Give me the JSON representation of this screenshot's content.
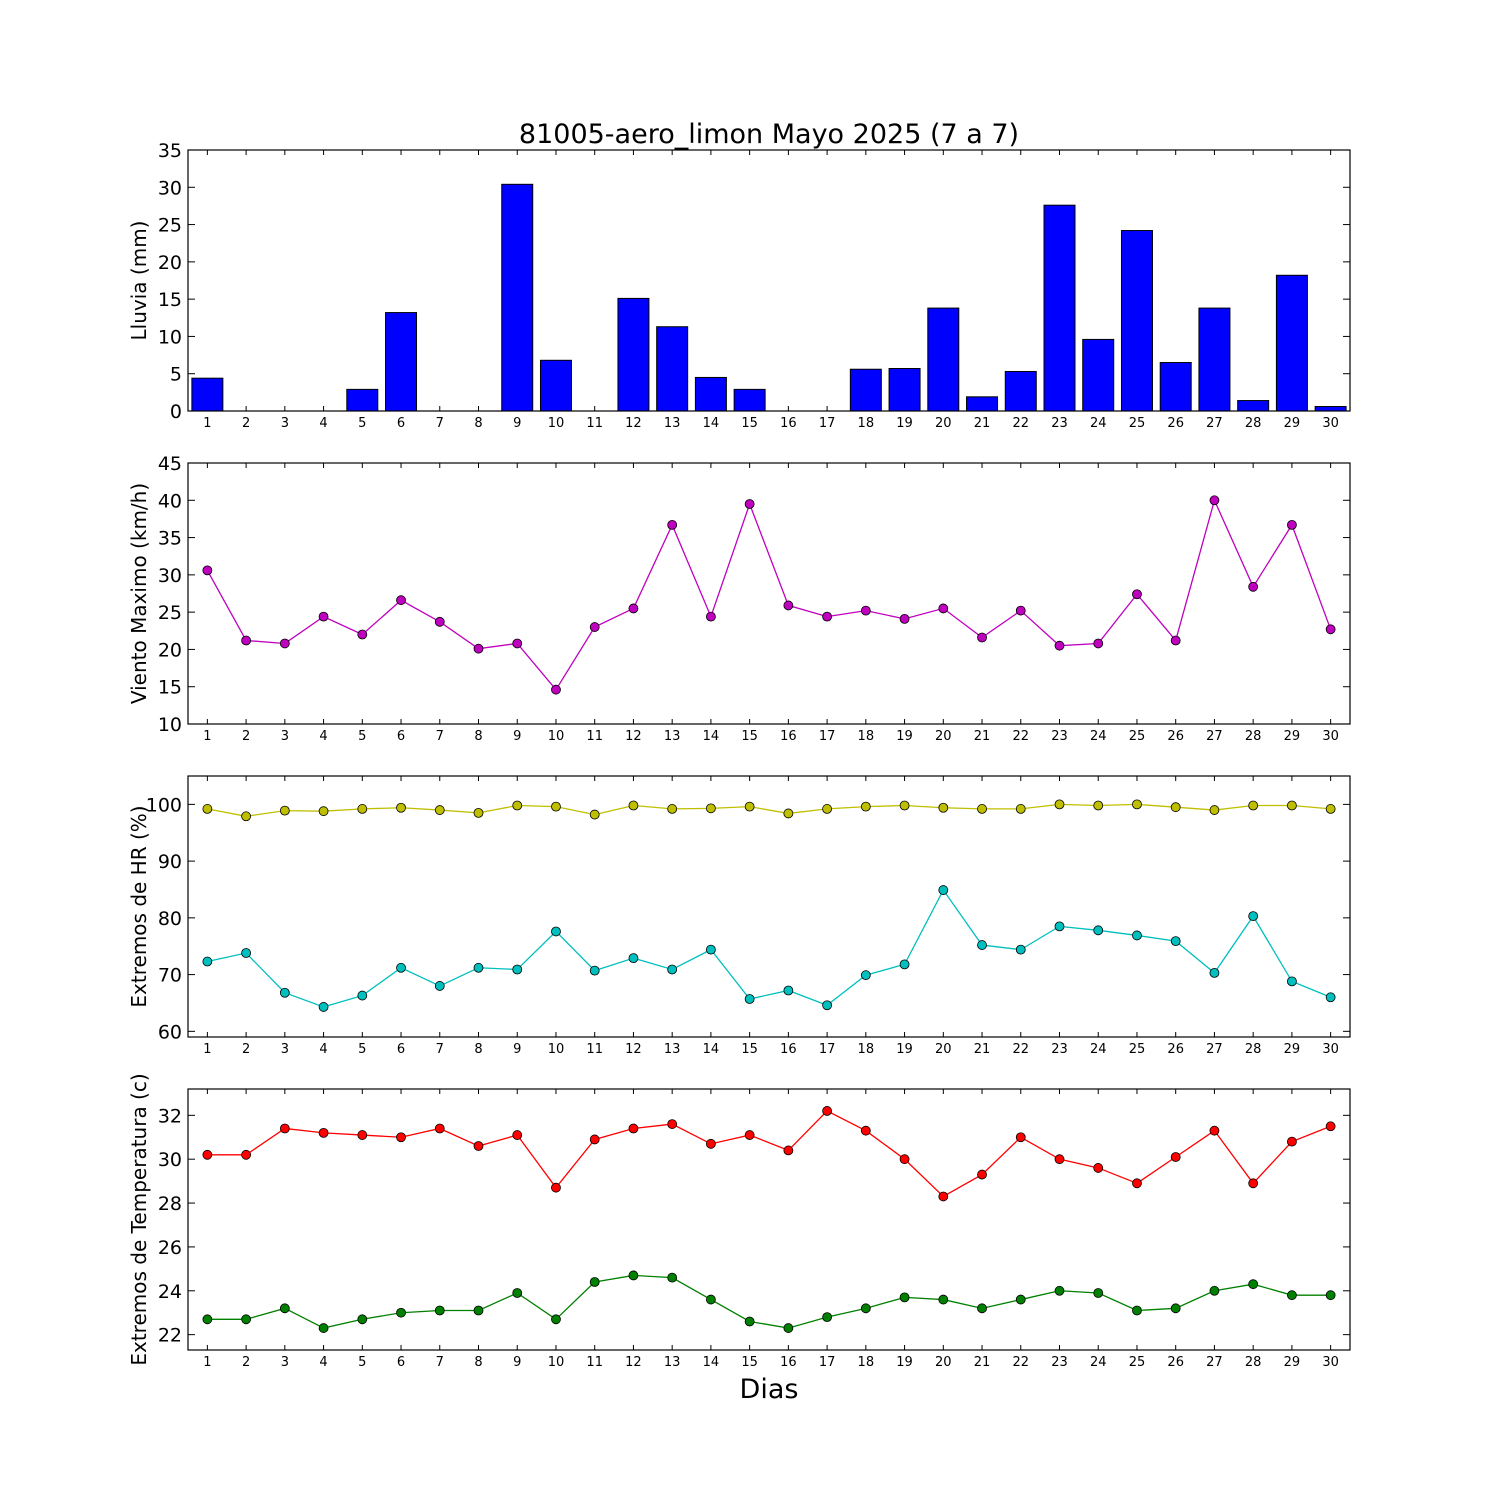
{
  "title": "81005-aero_limon Mayo 2025  (7 a 7)",
  "xlabel": "Dias",
  "chart_data": [
    {
      "type": "bar",
      "ylabel": "Lluvia (mm)",
      "ylim": [
        0,
        35
      ],
      "yticks": [
        0,
        5,
        10,
        15,
        20,
        25,
        30,
        35
      ],
      "categories": [
        "1",
        "2",
        "3",
        "4",
        "5",
        "6",
        "7",
        "8",
        "9",
        "10",
        "11",
        "12",
        "13",
        "14",
        "15",
        "16",
        "17",
        "18",
        "19",
        "20",
        "21",
        "22",
        "23",
        "24",
        "25",
        "26",
        "27",
        "28",
        "29",
        "30"
      ],
      "series": [
        {
          "color": "#0000ff",
          "values": [
            4.4,
            0,
            0,
            0,
            2.9,
            13.2,
            0,
            0,
            30.4,
            6.8,
            0,
            15.1,
            11.3,
            4.5,
            2.9,
            0,
            0,
            5.6,
            5.7,
            13.8,
            1.9,
            5.3,
            27.6,
            9.6,
            24.2,
            6.5,
            13.8,
            1.4,
            18.2,
            0.6
          ]
        }
      ]
    },
    {
      "type": "line",
      "ylabel": "Viento Maximo (km/h)",
      "ylim": [
        10,
        45
      ],
      "yticks": [
        10,
        15,
        20,
        25,
        30,
        35,
        40,
        45
      ],
      "categories": [
        "1",
        "2",
        "3",
        "4",
        "5",
        "6",
        "7",
        "8",
        "9",
        "10",
        "11",
        "12",
        "13",
        "14",
        "15",
        "16",
        "17",
        "18",
        "19",
        "20",
        "21",
        "22",
        "23",
        "24",
        "25",
        "26",
        "27",
        "28",
        "29",
        "30"
      ],
      "series": [
        {
          "color": "#bf00bf",
          "values": [
            30.6,
            21.2,
            20.8,
            24.4,
            22.0,
            26.6,
            23.7,
            20.1,
            20.8,
            14.6,
            23.0,
            25.5,
            36.7,
            24.4,
            39.5,
            25.9,
            24.4,
            25.2,
            24.1,
            25.5,
            21.6,
            25.2,
            20.5,
            20.8,
            27.4,
            21.2,
            40.0,
            28.4,
            36.7,
            22.7
          ]
        }
      ]
    },
    {
      "type": "line",
      "ylabel": "Extremos de HR (%)",
      "ylim": [
        59,
        105
      ],
      "yticks": [
        60,
        70,
        80,
        90,
        100
      ],
      "categories": [
        "1",
        "2",
        "3",
        "4",
        "5",
        "6",
        "7",
        "8",
        "9",
        "10",
        "11",
        "12",
        "13",
        "14",
        "15",
        "16",
        "17",
        "18",
        "19",
        "20",
        "21",
        "22",
        "23",
        "24",
        "25",
        "26",
        "27",
        "28",
        "29",
        "30"
      ],
      "series": [
        {
          "color": "#bfbf00",
          "values": [
            99.2,
            97.9,
            98.9,
            98.8,
            99.2,
            99.4,
            99.0,
            98.5,
            99.8,
            99.6,
            98.2,
            99.8,
            99.2,
            99.3,
            99.6,
            98.4,
            99.2,
            99.6,
            99.8,
            99.4,
            99.2,
            99.2,
            100.0,
            99.8,
            100.0,
            99.5,
            99.0,
            99.8,
            99.8,
            99.2
          ]
        },
        {
          "color": "#00bfbf",
          "values": [
            72.3,
            73.8,
            66.8,
            64.3,
            66.3,
            71.2,
            68.0,
            71.2,
            70.9,
            77.6,
            70.7,
            72.9,
            70.9,
            74.4,
            65.7,
            67.2,
            64.6,
            69.9,
            71.8,
            84.9,
            75.2,
            74.4,
            78.5,
            77.8,
            76.9,
            75.9,
            70.3,
            80.3,
            68.8,
            66.0
          ]
        }
      ]
    },
    {
      "type": "line",
      "ylabel": "Extremos de Temperatura (c)",
      "ylim": [
        21.3,
        33.2
      ],
      "yticks": [
        22,
        24,
        26,
        28,
        30,
        32
      ],
      "categories": [
        "1",
        "2",
        "3",
        "4",
        "5",
        "6",
        "7",
        "8",
        "9",
        "10",
        "11",
        "12",
        "13",
        "14",
        "15",
        "16",
        "17",
        "18",
        "19",
        "20",
        "21",
        "22",
        "23",
        "24",
        "25",
        "26",
        "27",
        "28",
        "29",
        "30"
      ],
      "series": [
        {
          "color": "#ff0000",
          "values": [
            30.2,
            30.2,
            31.4,
            31.2,
            31.1,
            31.0,
            31.4,
            30.6,
            31.1,
            28.7,
            30.9,
            31.4,
            31.6,
            30.7,
            31.1,
            30.4,
            32.2,
            31.3,
            30.0,
            28.3,
            29.3,
            31.0,
            30.0,
            29.6,
            28.9,
            30.1,
            31.3,
            28.9,
            30.8,
            31.5
          ]
        },
        {
          "color": "#008000",
          "values": [
            22.7,
            22.7,
            23.2,
            22.3,
            22.7,
            23.0,
            23.1,
            23.1,
            23.9,
            22.7,
            24.4,
            24.7,
            24.6,
            23.6,
            22.6,
            22.3,
            22.8,
            23.2,
            23.7,
            23.6,
            23.2,
            23.6,
            24.0,
            23.9,
            23.1,
            23.2,
            24.0,
            24.3,
            23.8,
            23.8
          ]
        }
      ]
    }
  ]
}
